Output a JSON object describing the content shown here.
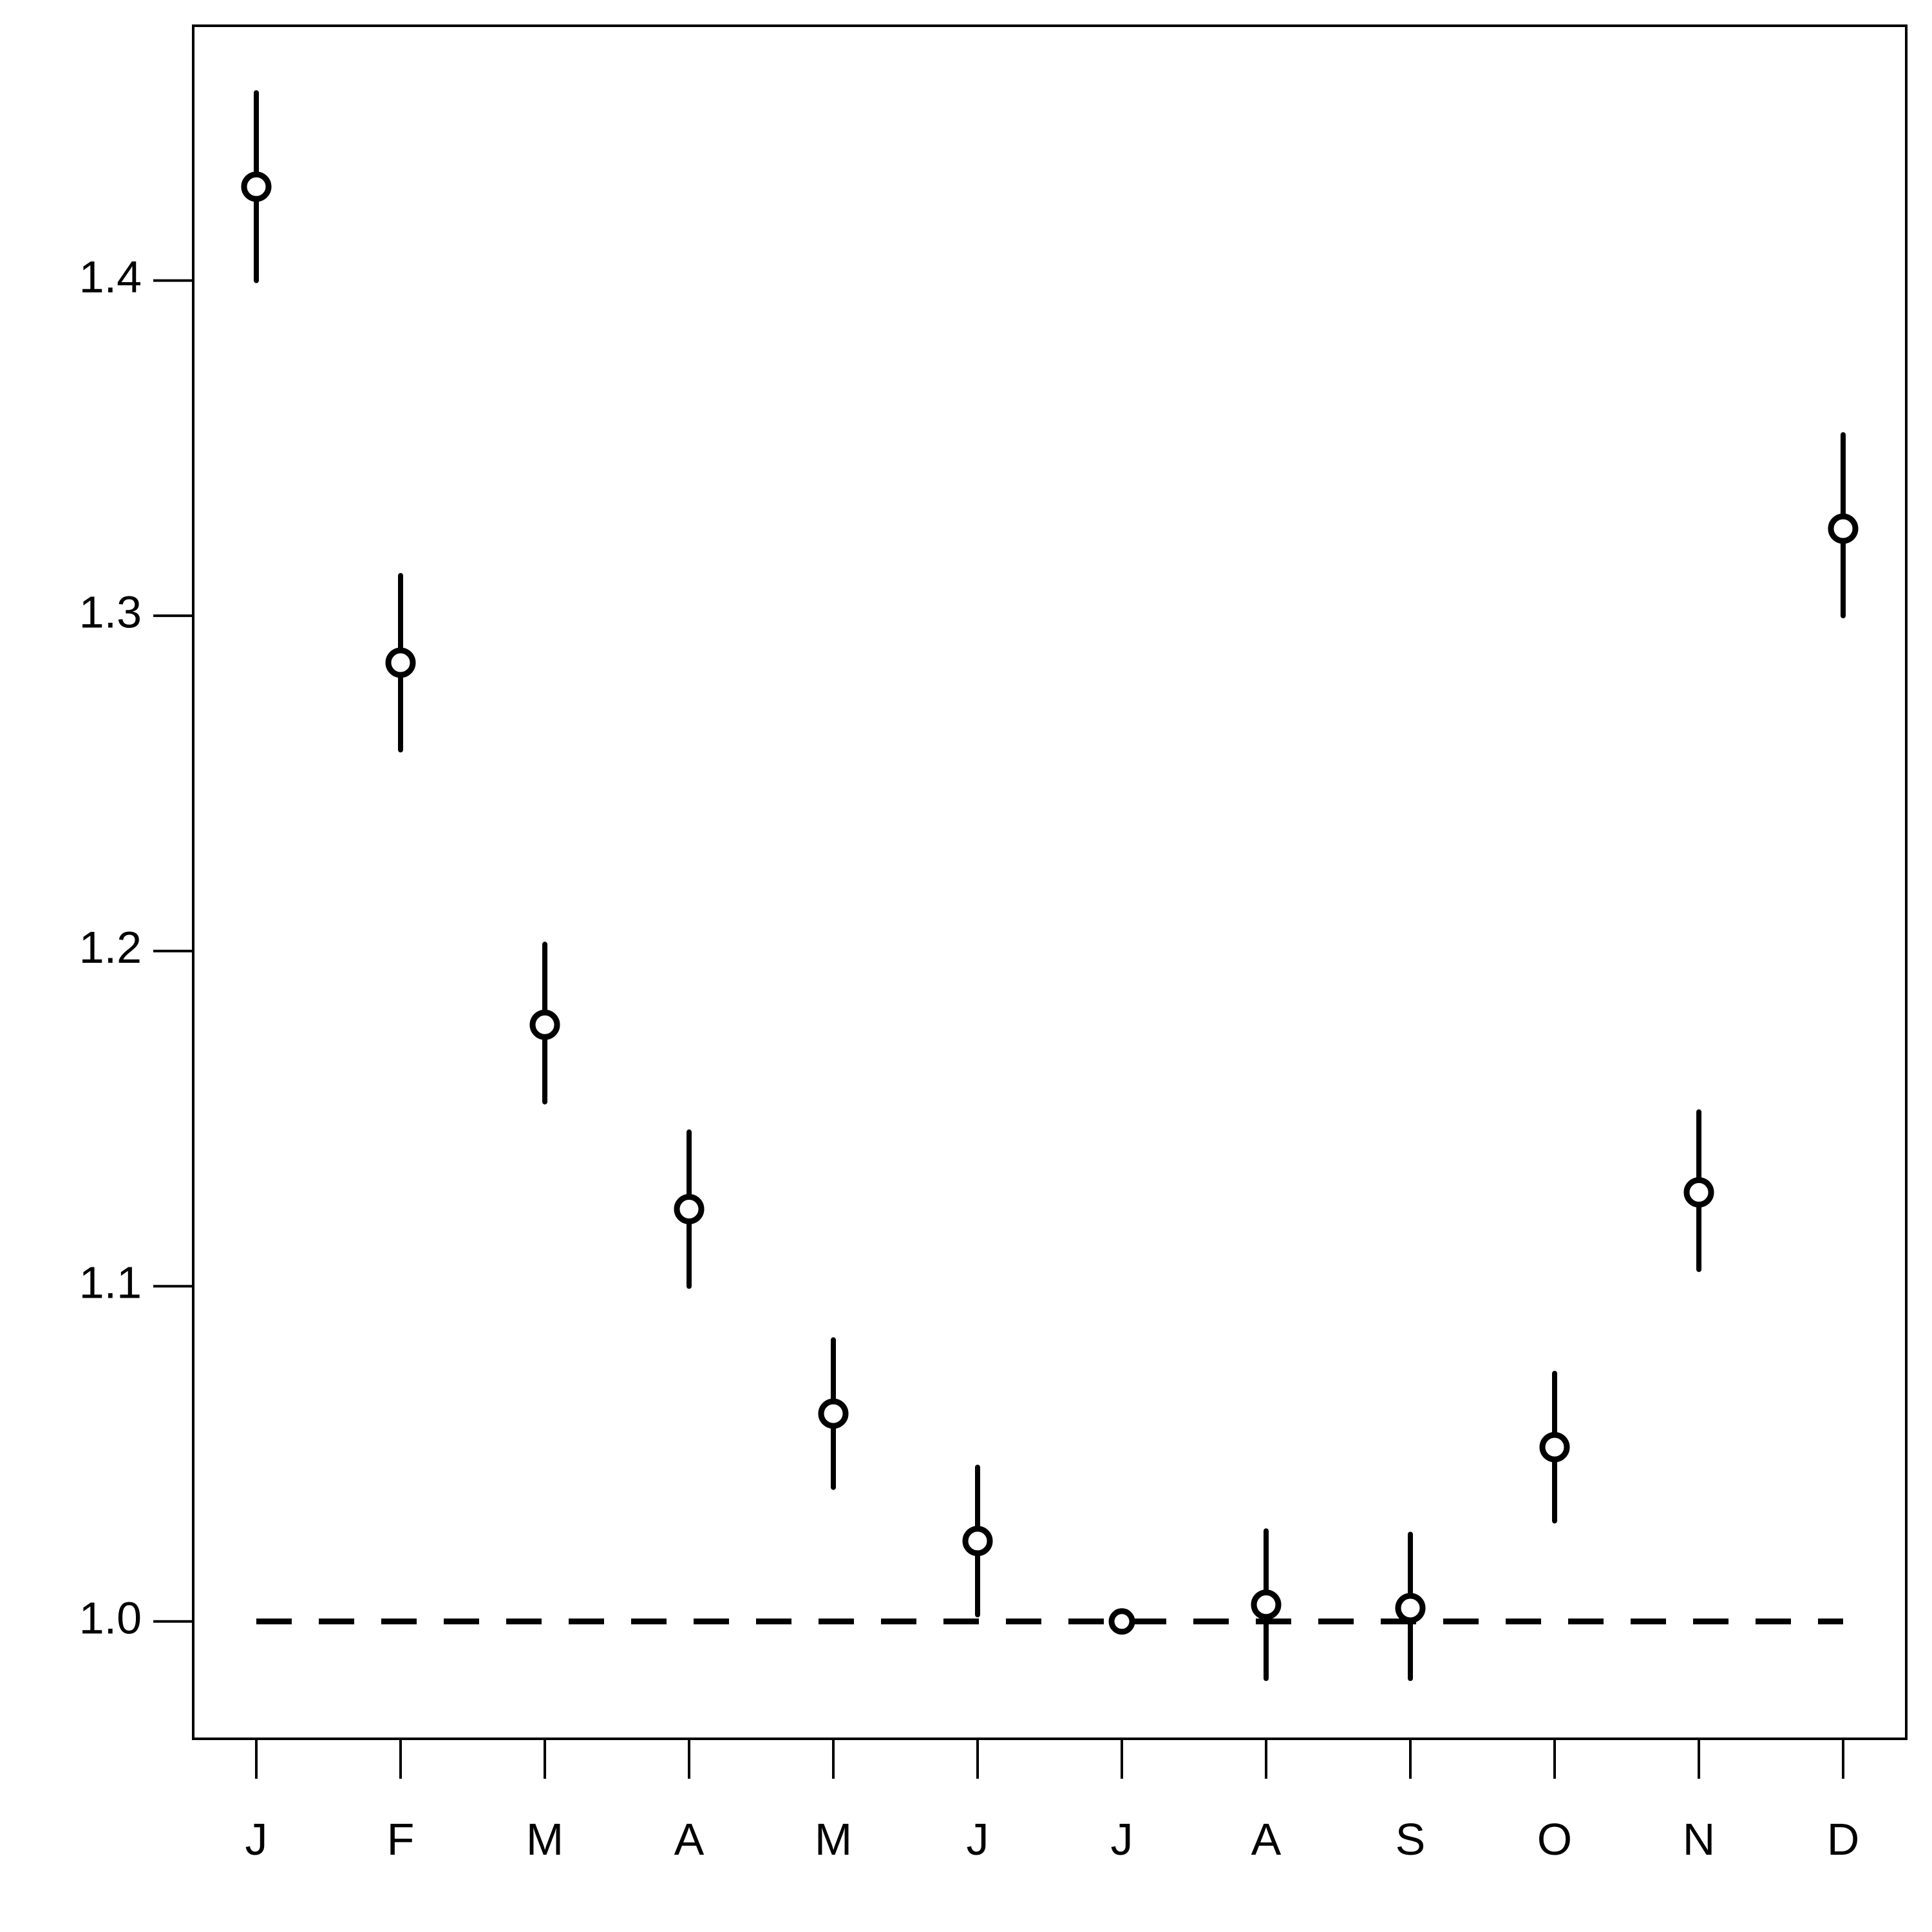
{
  "chart_data": {
    "type": "scatter",
    "title": "",
    "xlabel": "",
    "ylabel": "",
    "categories": [
      "J",
      "F",
      "M",
      "A",
      "M",
      "J",
      "J",
      "A",
      "S",
      "O",
      "N",
      "D"
    ],
    "values": [
      1.428,
      1.286,
      1.178,
      1.123,
      1.062,
      1.024,
      1.0,
      1.005,
      1.004,
      1.052,
      1.128,
      1.326
    ],
    "lower": [
      1.4,
      1.26,
      1.155,
      1.1,
      1.04,
      1.002,
      1.0,
      0.983,
      0.983,
      1.03,
      1.105,
      1.3
    ],
    "upper": [
      1.456,
      1.312,
      1.202,
      1.146,
      1.084,
      1.046,
      1.0,
      1.027,
      1.026,
      1.074,
      1.152,
      1.354
    ],
    "yticks": [
      1.0,
      1.1,
      1.2,
      1.3,
      1.4
    ],
    "ytick_labels": [
      "1.0",
      "1.1",
      "1.2",
      "1.3",
      "1.4"
    ],
    "ylim": [
      0.965,
      1.476
    ],
    "reference_line": {
      "y": 1.0,
      "style": "dashed"
    },
    "grid": false,
    "legend": "none",
    "colors": {
      "marks": "#000000",
      "background": "#ffffff"
    }
  }
}
